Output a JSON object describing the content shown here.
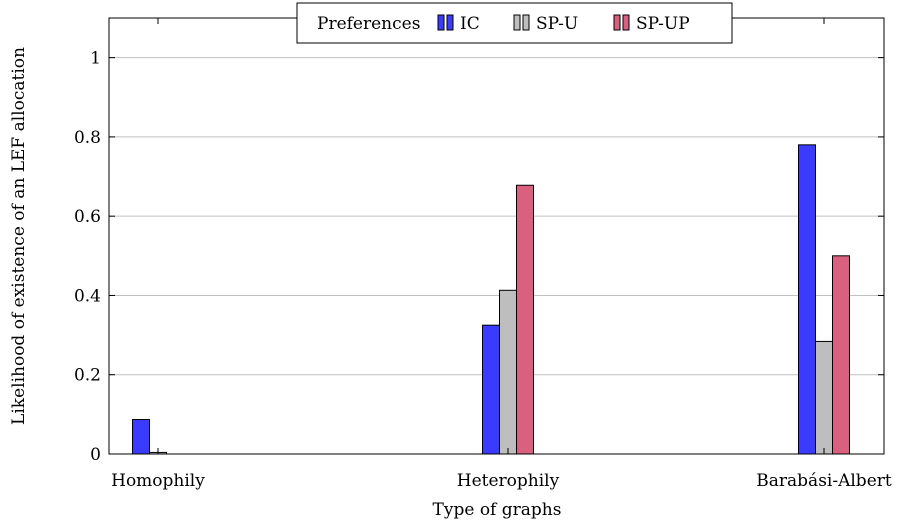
{
  "chart_data": {
    "type": "bar",
    "categories": [
      "Homophily",
      "Heterophily",
      "Barabási-Albert"
    ],
    "series": [
      {
        "name": "IC",
        "color": "#3b3bff",
        "values": [
          0.087,
          0.325,
          0.78
        ]
      },
      {
        "name": "SP-U",
        "color": "#bebebe",
        "values": [
          0.004,
          0.413,
          0.284
        ]
      },
      {
        "name": "SP-UP",
        "color": "#d9607f",
        "values": [
          0.0,
          0.678,
          0.5
        ]
      }
    ],
    "title": "",
    "xlabel": "Type of graphs",
    "ylabel": "Likelihood of existence of an LEF allocation",
    "ylim": [
      0,
      1.1
    ],
    "yticks": [
      0,
      0.2,
      0.4,
      0.6,
      0.8,
      1
    ],
    "ytick_labels": [
      "0",
      "0.2",
      "0.4",
      "0.6",
      "0.8",
      "1"
    ],
    "grid": "horizontal",
    "legend": {
      "title": "Preferences",
      "placement": "top-center"
    }
  }
}
